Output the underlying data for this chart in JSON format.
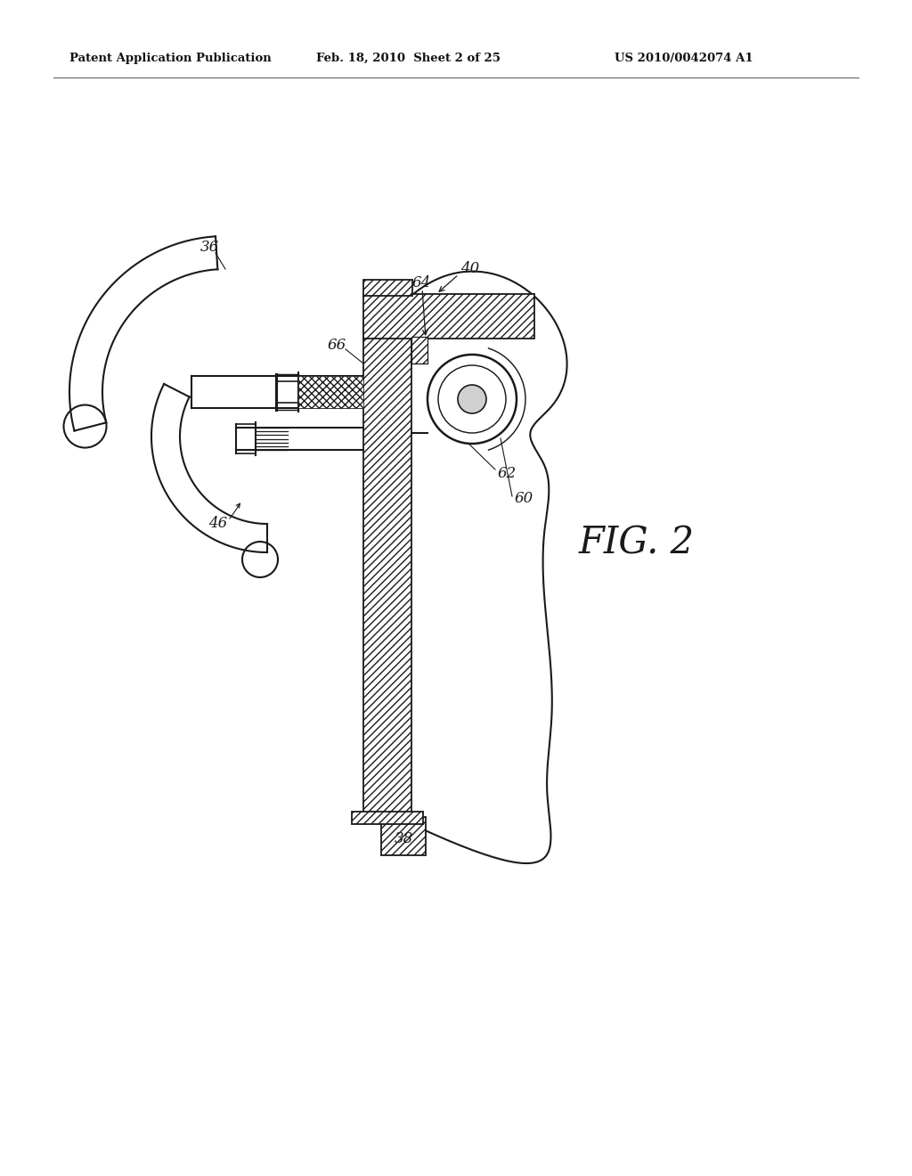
{
  "background_color": "#ffffff",
  "header_left": "Patent Application Publication",
  "header_center": "Feb. 18, 2010  Sheet 2 of 25",
  "header_right": "US 2010/0042074 A1",
  "fig_label": "FIG. 2",
  "line_color": "#1a1a1a",
  "lw": 1.5,
  "label_fontsize": 12,
  "fig_label_fontsize": 30
}
